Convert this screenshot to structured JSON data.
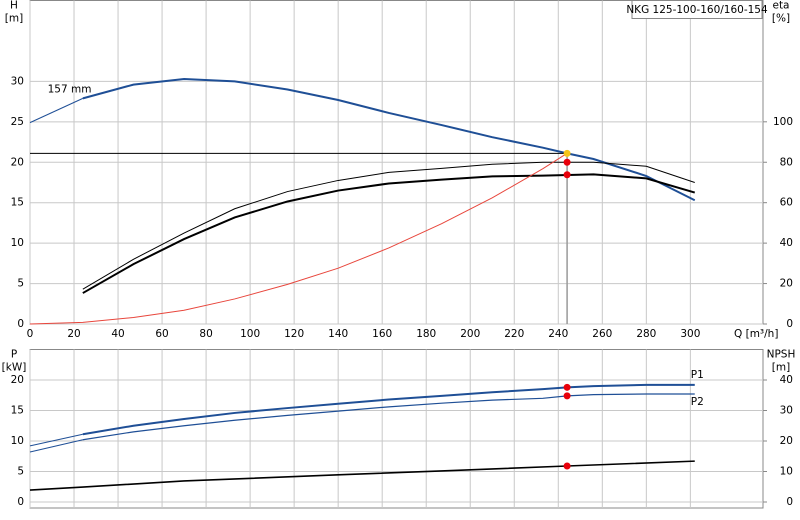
{
  "title": "NKG 125-100-160/160-154",
  "chart_data": [
    {
      "type": "line",
      "xlabel": "Q [m³/h]",
      "ylabel": [
        "H",
        "[m]"
      ],
      "y2label": [
        "eta",
        "[%]"
      ],
      "xlim": [
        0,
        333
      ],
      "xticks": [
        0,
        20,
        40,
        60,
        80,
        100,
        120,
        140,
        160,
        180,
        200,
        220,
        240,
        260,
        280,
        300
      ],
      "ylim": [
        0,
        40
      ],
      "yticks": [
        0,
        5,
        10,
        15,
        20,
        25,
        30
      ],
      "y2lim": [
        0,
        160
      ],
      "y2ticks": [
        0,
        20,
        40,
        60,
        80,
        100
      ],
      "grid": true,
      "show_xtick_labels": true,
      "annotations": [
        {
          "text": "157 mm",
          "x": 8,
          "y": 29
        }
      ],
      "series": [
        {
          "color": "#1f4f96",
          "width": 1,
          "x": [
            0,
            24
          ],
          "values": [
            24.9,
            27.9
          ]
        },
        {
          "color": "#1f4f96",
          "width": 2,
          "x": [
            24,
            47,
            70,
            93,
            117,
            140,
            163,
            187,
            210,
            233,
            244,
            256,
            280,
            302
          ],
          "values": [
            27.9,
            29.6,
            30.3,
            30.0,
            29.0,
            27.7,
            26.1,
            24.6,
            23.1,
            21.8,
            21.1,
            20.4,
            18.3,
            15.3
          ]
        },
        {
          "color": "#000000",
          "width": 1,
          "axis": "y2",
          "x": [
            24,
            47,
            70,
            93,
            117,
            140,
            163,
            187,
            210,
            233,
            256,
            280,
            302
          ],
          "values": [
            17.2,
            32,
            45,
            57,
            65.5,
            71,
            75,
            77,
            79,
            80,
            80,
            78,
            70
          ]
        },
        {
          "color": "#000000",
          "width": 2,
          "axis": "y2",
          "x": [
            24,
            47,
            70,
            93,
            117,
            140,
            163,
            187,
            210,
            233,
            256,
            280,
            302
          ],
          "values": [
            15.3,
            29.6,
            42,
            52.7,
            60.6,
            66,
            69.5,
            71.4,
            73,
            73.4,
            74,
            72,
            65
          ]
        },
        {
          "color": "#e8463c",
          "width": 1,
          "x": [
            0,
            24,
            47,
            70,
            93,
            117,
            140,
            163,
            187,
            210,
            233,
            244
          ],
          "values": [
            0,
            0.2,
            0.8,
            1.7,
            3.1,
            4.9,
            6.9,
            9.4,
            12.4,
            15.6,
            19.2,
            21.1
          ]
        },
        {
          "color": "#000000",
          "width": 1,
          "x": [
            0,
            244
          ],
          "values": [
            21.1,
            21.1
          ]
        },
        {
          "color": "#999999",
          "width": 1.5,
          "x": [
            244,
            244
          ],
          "values": [
            0,
            21.1
          ]
        }
      ],
      "markers": [
        {
          "x": 244,
          "y": 21.1,
          "color": "#f5c518"
        },
        {
          "x": 244,
          "y": 80,
          "axis": "y2",
          "color": "#e8000b"
        },
        {
          "x": 244,
          "y": 73.8,
          "axis": "y2",
          "color": "#e8000b"
        }
      ]
    },
    {
      "type": "line",
      "ylabel": [
        "P",
        "[kW]"
      ],
      "y2label": [
        "NPSH",
        "[m]"
      ],
      "xlim": [
        0,
        333
      ],
      "xticks": [
        0,
        20,
        40,
        60,
        80,
        100,
        120,
        140,
        160,
        180,
        200,
        220,
        240,
        260,
        280,
        300
      ],
      "ylim": [
        0,
        25
      ],
      "yticks": [
        0,
        5,
        10,
        15,
        20
      ],
      "y2lim": [
        0,
        50
      ],
      "y2ticks": [
        0,
        10,
        20,
        30,
        40
      ],
      "grid": true,
      "show_xtick_labels": false,
      "series": [
        {
          "color": "#1f4f96",
          "width": 1,
          "x": [
            0,
            24
          ],
          "values": [
            9.2,
            11.1
          ]
        },
        {
          "name": "P1",
          "color": "#1f4f96",
          "width": 2,
          "x": [
            24,
            47,
            70,
            93,
            117,
            140,
            163,
            187,
            210,
            233,
            244,
            256,
            280,
            302
          ],
          "values": [
            11.1,
            12.5,
            13.6,
            14.6,
            15.4,
            16.1,
            16.8,
            17.4,
            18.0,
            18.5,
            18.8,
            19.0,
            19.2,
            19.2
          ]
        },
        {
          "color": "#1f4f96",
          "width": 1,
          "x": [
            0,
            24
          ],
          "values": [
            8.2,
            10.2
          ]
        },
        {
          "name": "P2",
          "color": "#1f4f96",
          "width": 1.2,
          "x": [
            24,
            47,
            70,
            93,
            117,
            140,
            163,
            187,
            210,
            233,
            244,
            256,
            280,
            302
          ],
          "values": [
            10.2,
            11.5,
            12.5,
            13.4,
            14.2,
            14.9,
            15.6,
            16.2,
            16.7,
            17.0,
            17.4,
            17.6,
            17.7,
            17.7
          ]
        },
        {
          "color": "#000000",
          "width": 1.6,
          "axis": "y2",
          "x": [
            0,
            24,
            70,
            140,
            187,
            244,
            302
          ],
          "values": [
            3.9,
            4.9,
            6.9,
            8.9,
            10.2,
            11.8,
            13.4
          ]
        }
      ],
      "markers": [
        {
          "x": 244,
          "y": 18.8,
          "color": "#e8000b"
        },
        {
          "x": 244,
          "y": 17.4,
          "color": "#e8000b"
        },
        {
          "x": 244,
          "y": 11.8,
          "axis": "y2",
          "color": "#e8000b"
        }
      ]
    }
  ]
}
